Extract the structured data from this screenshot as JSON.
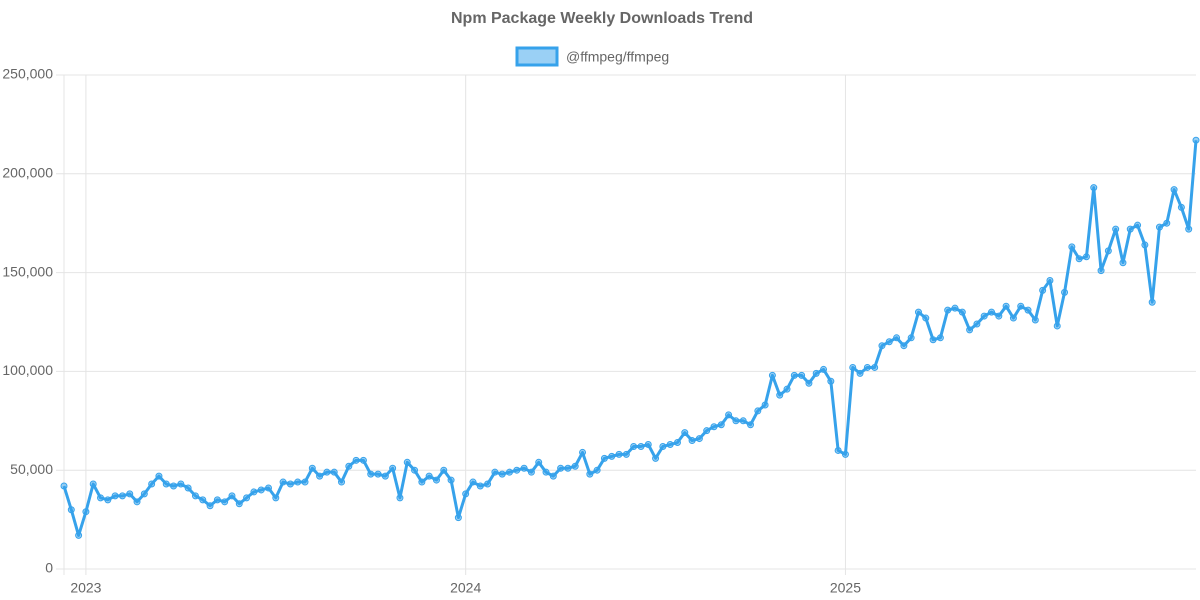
{
  "chart_data": {
    "type": "line",
    "title": "Npm Package Weekly Downloads Trend",
    "categories": [
      null,
      null,
      null,
      "2023",
      null,
      null,
      null,
      null,
      null,
      null,
      null,
      null,
      null,
      null,
      null,
      null,
      null,
      null,
      null,
      null,
      null,
      null,
      null,
      null,
      null,
      null,
      null,
      null,
      null,
      null,
      null,
      null,
      null,
      null,
      null,
      null,
      null,
      null,
      null,
      null,
      null,
      null,
      null,
      null,
      null,
      null,
      null,
      null,
      null,
      null,
      null,
      null,
      null,
      null,
      null,
      "2024",
      null,
      null,
      null,
      null,
      null,
      null,
      null,
      null,
      null,
      null,
      null,
      null,
      null,
      null,
      null,
      null,
      null,
      null,
      null,
      null,
      null,
      null,
      null,
      null,
      null,
      null,
      null,
      null,
      null,
      null,
      null,
      null,
      null,
      null,
      null,
      null,
      null,
      null,
      null,
      null,
      null,
      null,
      null,
      null,
      null,
      null,
      null,
      null,
      null,
      null,
      null,
      "2025",
      null,
      null,
      null,
      null,
      null,
      null,
      null,
      null,
      null,
      null,
      null,
      null,
      null,
      null,
      null,
      null,
      null,
      null,
      null,
      null,
      null,
      null,
      null,
      null,
      null,
      null,
      null,
      null,
      null,
      null,
      null,
      null,
      null,
      null,
      null,
      null,
      null,
      null,
      null,
      null,
      null,
      null,
      null,
      null,
      null,
      null,
      null,
      null
    ],
    "series": [
      {
        "name": "@ffmpeg/ffmpeg",
        "color": "#36a2eb",
        "values": [
          42000,
          30000,
          17000,
          29000,
          43000,
          36000,
          35000,
          37000,
          37000,
          38000,
          34000,
          38000,
          43000,
          47000,
          43000,
          42000,
          43000,
          41000,
          37000,
          35000,
          32000,
          35000,
          34000,
          37000,
          33000,
          36000,
          39000,
          40000,
          41000,
          36000,
          44000,
          43000,
          44000,
          44000,
          51000,
          47000,
          49000,
          49000,
          44000,
          52000,
          55000,
          55000,
          48000,
          48000,
          47000,
          51000,
          36000,
          54000,
          50000,
          44000,
          47000,
          45000,
          50000,
          45000,
          26000,
          38000,
          44000,
          42000,
          43000,
          49000,
          48000,
          49000,
          50000,
          51000,
          49000,
          54000,
          49000,
          47000,
          51000,
          51000,
          52000,
          59000,
          48000,
          50000,
          56000,
          57000,
          58000,
          58000,
          62000,
          62000,
          63000,
          56000,
          62000,
          63000,
          64000,
          69000,
          65000,
          66000,
          70000,
          72000,
          73000,
          78000,
          75000,
          75000,
          73000,
          80000,
          83000,
          98000,
          88000,
          91000,
          98000,
          98000,
          94000,
          99000,
          101000,
          95000,
          60000,
          58000,
          102000,
          99000,
          102000,
          102000,
          113000,
          115000,
          117000,
          113000,
          117000,
          130000,
          127000,
          116000,
          117000,
          131000,
          132000,
          130000,
          121000,
          124000,
          128000,
          130000,
          128000,
          133000,
          127000,
          133000,
          131000,
          126000,
          141000,
          146000,
          123000,
          140000,
          163000,
          157000,
          158000,
          193000,
          151000,
          161000,
          172000,
          155000,
          172000,
          174000,
          164000,
          135000,
          173000,
          175000,
          192000,
          183000,
          172000,
          217000
        ]
      }
    ],
    "ylim": [
      0,
      250000
    ],
    "yticks": [
      0,
      {
        "value": 50000,
        "label": "50,000"
      },
      {
        "value": 100000,
        "label": "100,000"
      },
      {
        "value": 150000,
        "label": "150,000"
      },
      {
        "value": 200000,
        "label": "200,000"
      },
      {
        "value": 250000,
        "label": "250,000"
      }
    ],
    "grid": true,
    "legend": "top"
  }
}
